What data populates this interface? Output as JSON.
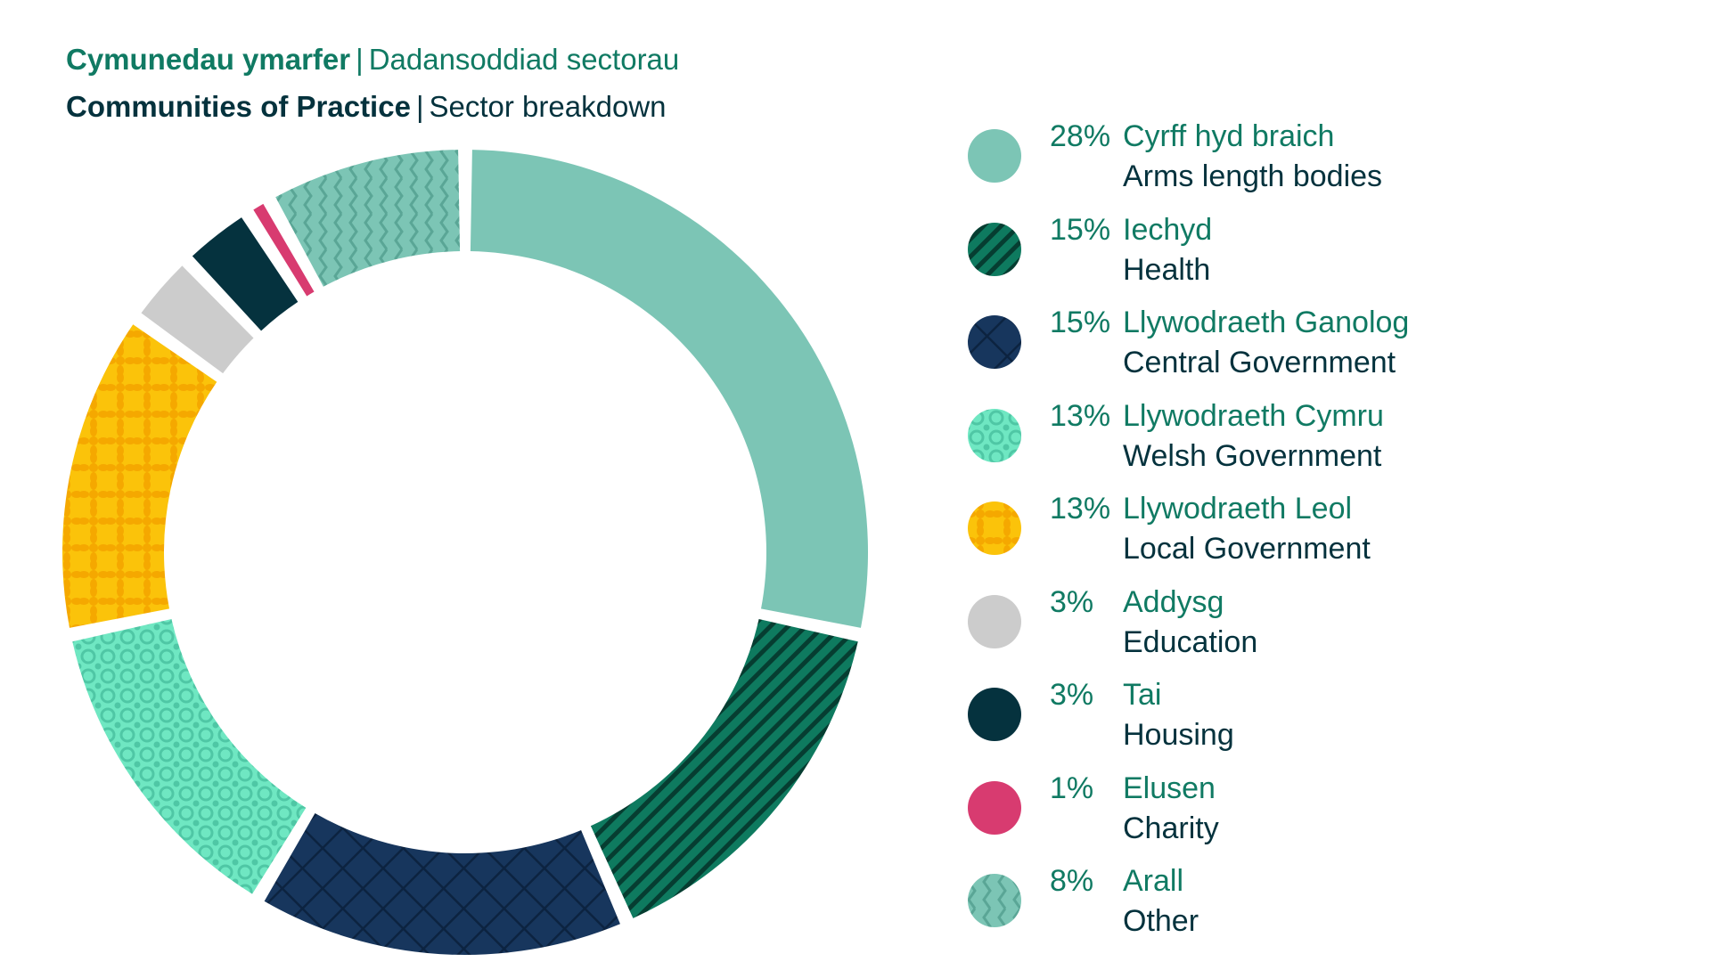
{
  "header": {
    "cy_bold": "Cymunedau ymarfer",
    "cy_rest": "Dadansoddiad sectorau",
    "en_bold": "Communities of Practice",
    "en_rest": "Sector breakdown",
    "separator": "|"
  },
  "chart_data": {
    "type": "pie",
    "style": "donut",
    "legend_position": "right",
    "series": [
      {
        "pct_label": "28%",
        "name_cy": "Cyrff hyd braich",
        "name_en": "Arms length bodies",
        "value": 28,
        "color": "#7cc5b5",
        "pattern": "solid"
      },
      {
        "pct_label": "15%",
        "name_cy": "Iechyd",
        "name_en": "Health",
        "value": 15,
        "color": "#0e7a5f",
        "pattern": "diagonal-stripes"
      },
      {
        "pct_label": "15%",
        "name_cy": "Llywodraeth Ganolog",
        "name_en": "Central Government",
        "value": 15,
        "color": "#17365d",
        "pattern": "crosshatch"
      },
      {
        "pct_label": "13%",
        "name_cy": "Llywodraeth Cymru",
        "name_en": "Welsh Government",
        "value": 13,
        "color": "#6fe7c2",
        "pattern": "circles"
      },
      {
        "pct_label": "13%",
        "name_cy": "Llywodraeth Leol",
        "name_en": "Local Government",
        "value": 13,
        "color": "#fbc30a",
        "pattern": "quatrefoil"
      },
      {
        "pct_label": "3%",
        "name_cy": "Addysg",
        "name_en": "Education",
        "value": 3,
        "color": "#cccccc",
        "pattern": "solid"
      },
      {
        "pct_label": "3%",
        "name_cy": "Tai",
        "name_en": "Housing",
        "value": 3,
        "color": "#05323e",
        "pattern": "solid"
      },
      {
        "pct_label": "1%",
        "name_cy": "Elusen",
        "name_en": "Charity",
        "value": 1,
        "color": "#d83b70",
        "pattern": "solid"
      },
      {
        "pct_label": "8%",
        "name_cy": "Arall",
        "name_en": "Other",
        "value": 8,
        "color": "#7cc5b5",
        "pattern": "zigzag"
      }
    ]
  }
}
